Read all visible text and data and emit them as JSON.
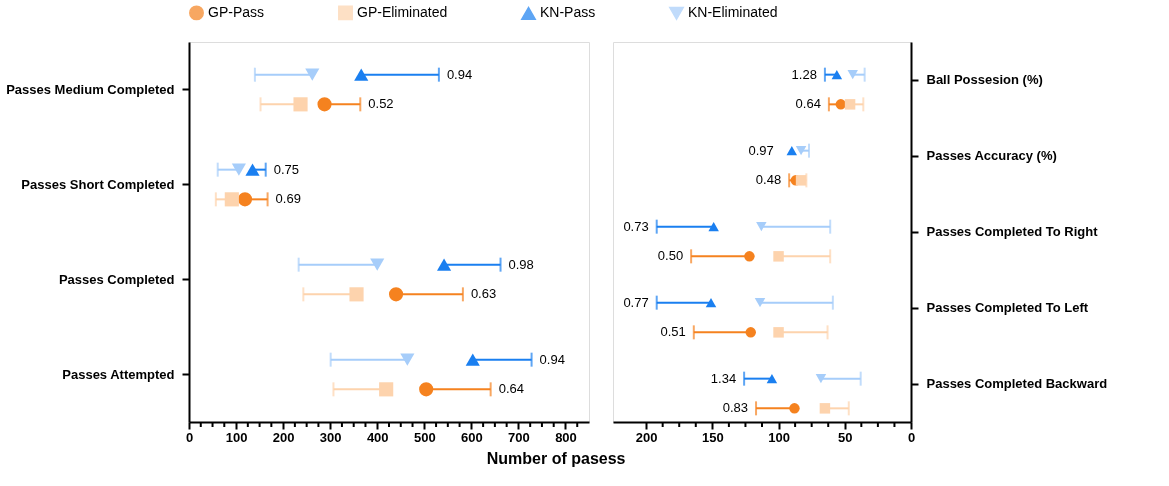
{
  "chart_data": [
    {
      "type": "scatter",
      "orientation": "horizontal",
      "legend": "top",
      "grid": false,
      "xlabel": "Number of pasess",
      "categories": [
        "Passes Medium Completed",
        "Passes Short Completed",
        "Passes Completed",
        "Passes Attempted"
      ],
      "xlim": [
        0,
        850
      ],
      "xticks": [
        0,
        {
          "value": 25,
          "label": null
        },
        {
          "value": 50,
          "label": null
        },
        {
          "value": 75,
          "label": null
        },
        100,
        {
          "value": 125,
          "label": null
        },
        {
          "value": 150,
          "label": null
        },
        {
          "value": 175,
          "label": null
        },
        200,
        {
          "value": 225,
          "label": null
        },
        {
          "value": 250,
          "label": null
        },
        {
          "value": 275,
          "label": null
        },
        300,
        {
          "value": 325,
          "label": null
        },
        {
          "value": 350,
          "label": null
        },
        {
          "value": 375,
          "label": null
        },
        400,
        {
          "value": 425,
          "label": null
        },
        {
          "value": 450,
          "label": null
        },
        {
          "value": 475,
          "label": null
        },
        500,
        {
          "value": 525,
          "label": null
        },
        {
          "value": 550,
          "label": null
        },
        {
          "value": 575,
          "label": null
        },
        600,
        {
          "value": 625,
          "label": null
        },
        {
          "value": 650,
          "label": null
        },
        {
          "value": 675,
          "label": null
        },
        700,
        {
          "value": 725,
          "label": null
        },
        {
          "value": 750,
          "label": null
        },
        {
          "value": 775,
          "label": null
        },
        800,
        {
          "value": 825,
          "label": null
        }
      ],
      "series": [
        {
          "name": "GP-Pass",
          "color": "#f5821f",
          "marker": "circle",
          "values": [
            288,
            119,
            440,
            504
          ],
          "errors": [
            [
              288,
              364
            ],
            [
              119,
              167
            ],
            [
              440,
              582
            ],
            [
              504,
              641
            ]
          ]
        },
        {
          "name": "GP-Eliminated",
          "color": "#fdd3ad",
          "marker": "square",
          "values": [
            237,
            91,
            356,
            419
          ],
          "errors": [
            [
              152,
              237
            ],
            [
              57,
              91
            ],
            [
              243,
              356
            ],
            [
              307,
              419
            ]
          ]
        },
        {
          "name": "KN-Pass",
          "color": "#1a7ff0",
          "marker": "triangle",
          "values": [
            366,
            135,
            542,
            603
          ],
          "errors": [
            [
              366,
              531
            ],
            [
              135,
              163
            ],
            [
              542,
              662
            ],
            [
              603,
              728
            ]
          ]
        },
        {
          "name": "KN-Eliminated",
          "color": "#a6cdfa",
          "marker": "triangle-down",
          "values": [
            262,
            106,
            400,
            464
          ],
          "errors": [
            [
              140,
              262
            ],
            [
              61,
              106
            ],
            [
              233,
              400
            ],
            [
              301,
              464
            ]
          ]
        }
      ],
      "annotations": [
        "0.94",
        "0.52",
        "0.75",
        "0.69",
        "0.98",
        "0.63",
        "0.94",
        "0.64"
      ]
    },
    {
      "type": "scatter",
      "orientation": "horizontal",
      "grid": false,
      "categories": [
        "Ball Possesion (%)",
        "Passes Accuracy (%)",
        "Passes Completed To Right",
        "Passes Completed To Left",
        "Passes Completed Backward"
      ],
      "xlim": [
        225,
        0
      ],
      "xticks": [
        200,
        {
          "value": 187.5,
          "label": null
        },
        {
          "value": 175,
          "label": null
        },
        {
          "value": 162.5,
          "label": null
        },
        150,
        {
          "value": 137.5,
          "label": null
        },
        {
          "value": 125,
          "label": null
        },
        {
          "value": 112.5,
          "label": null
        },
        100,
        {
          "value": 87.5,
          "label": null
        },
        {
          "value": 75,
          "label": null
        },
        {
          "value": 62.5,
          "label": null
        },
        50,
        {
          "value": 37.5,
          "label": null
        },
        {
          "value": 25,
          "label": null
        },
        {
          "value": 12.5,
          "label": null
        },
        0
      ],
      "series": [
        {
          "name": "GP-Pass",
          "color": "#f5821f",
          "marker": "circle",
          "values": [
            53,
            87,
            122,
            121,
            88
          ],
          "errors": [
            [
              53,
              62
            ],
            [
              87,
              92
            ],
            [
              122,
              166
            ],
            [
              121,
              164
            ],
            [
              88,
              117
            ]
          ]
        },
        {
          "name": "GP-Eliminated",
          "color": "#fdd3ad",
          "marker": "square",
          "values": [
            46,
            83,
            100,
            100,
            65
          ],
          "errors": [
            [
              36,
              46
            ],
            [
              79,
              83
            ],
            [
              61,
              100
            ],
            [
              63,
              100
            ],
            [
              47,
              65
            ]
          ]
        },
        {
          "name": "KN-Pass",
          "color": "#1a7ff0",
          "marker": "triangle",
          "values": [
            56,
            90,
            149,
            151,
            105
          ],
          "errors": [
            [
              56,
              65
            ],
            null,
            [
              149,
              192
            ],
            [
              151,
              192
            ],
            [
              105,
              126
            ]
          ]
        },
        {
          "name": "KN-Eliminated",
          "color": "#a6cdfa",
          "marker": "triangle-down",
          "values": [
            44,
            83,
            113,
            114,
            68
          ],
          "errors": [
            [
              35,
              44
            ],
            [
              77,
              83
            ],
            [
              61,
              113
            ],
            [
              59,
              114
            ],
            [
              38,
              68
            ]
          ]
        }
      ],
      "annotations": [
        "1.28",
        "0.64",
        "0.97",
        "0.48",
        "0.73",
        "0.50",
        "0.77",
        "0.51",
        "1.34",
        "0.83"
      ]
    }
  ]
}
